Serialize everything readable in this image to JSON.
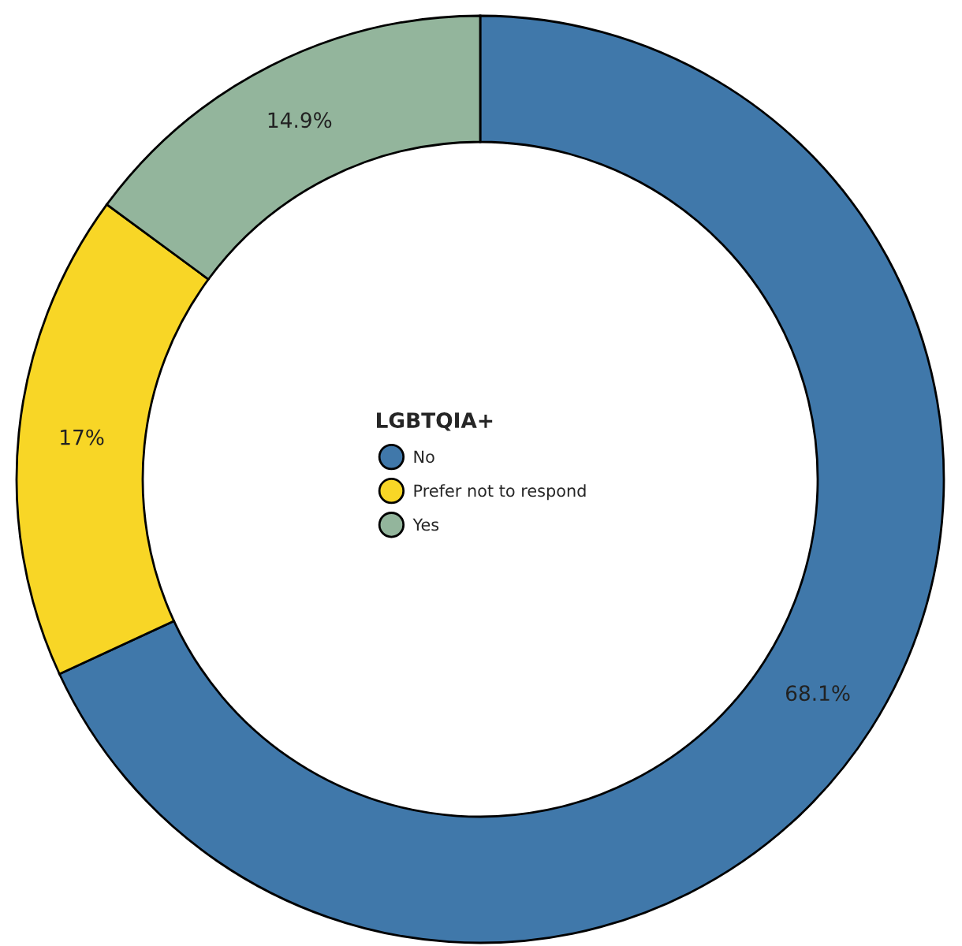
{
  "chart_data": {
    "type": "donut",
    "legend_title": "LGBTQIA+",
    "categories": [
      "No",
      "Prefer not to respond",
      "Yes"
    ],
    "values": [
      68.1,
      17,
      14.9
    ],
    "colors": [
      "#4078aa",
      "#f8d626",
      "#93b59c"
    ],
    "value_labels": [
      "68.1%",
      "17%",
      "14.9%"
    ],
    "legend": "center"
  }
}
